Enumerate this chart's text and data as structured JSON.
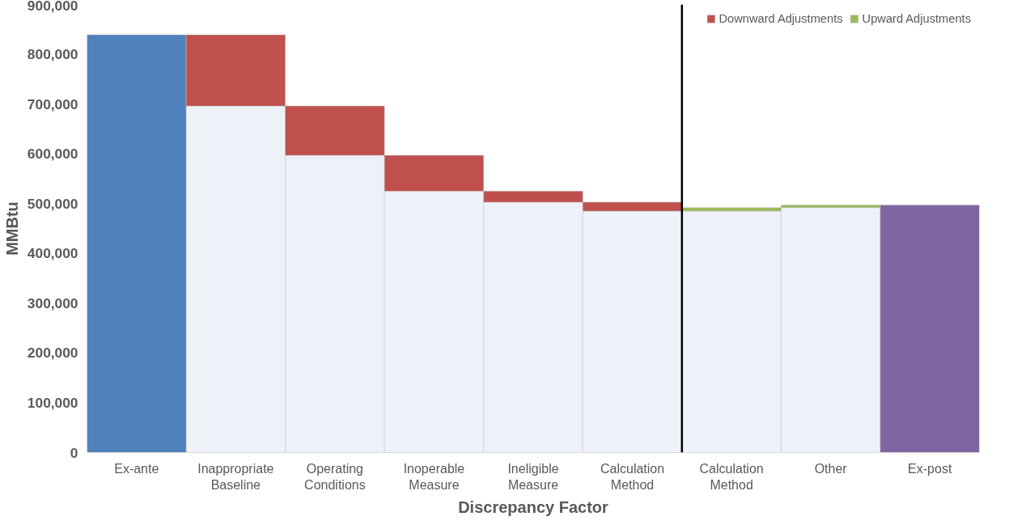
{
  "chart_data": {
    "type": "bar",
    "stacked": true,
    "xlabel": "Discrepancy Factor",
    "ylabel": "MMBtu",
    "categories": [
      "Ex-ante",
      "Inappropriate Baseline",
      "Operating Conditions",
      "Inoperable Measure",
      "Ineligible Measure",
      "Calculation Method",
      "Calculation Method",
      "Other",
      "Ex-post"
    ],
    "series": [
      {
        "color": "#eef2f8",
        "values": [
          null,
          696000,
          597000,
          525000,
          503000,
          485000,
          485000,
          492000,
          null
        ]
      },
      {
        "color": "#4f81bd",
        "values": [
          839000,
          null,
          null,
          null,
          null,
          null,
          null,
          null,
          null
        ]
      },
      {
        "color": "#8064a2",
        "values": [
          null,
          null,
          null,
          null,
          null,
          null,
          null,
          null,
          497000
        ]
      },
      {
        "name": "Downward Adjustments",
        "color": "#c0504d",
        "values": [
          null,
          143000,
          99000,
          72000,
          22000,
          18000,
          null,
          null,
          null
        ]
      },
      {
        "name": "Upward Adjustments",
        "color": "#9bbb59",
        "values": [
          null,
          null,
          null,
          null,
          null,
          null,
          7000,
          5000,
          null
        ]
      }
    ],
    "ylim": [
      0,
      900000
    ],
    "yticks": [
      0,
      {
        "value": 100000,
        "label": "100,000"
      },
      {
        "value": 200000,
        "label": "200,000"
      },
      {
        "value": 300000,
        "label": "300,000"
      },
      {
        "value": 400000,
        "label": "400,000"
      },
      {
        "value": 500000,
        "label": "500,000"
      },
      {
        "value": 600000,
        "label": "600,000"
      },
      {
        "value": 700000,
        "label": "700,000"
      },
      {
        "value": 800000,
        "label": "800,000"
      },
      {
        "value": 900000,
        "label": "900,000"
      }
    ],
    "legend": "top right",
    "grid": false
  }
}
